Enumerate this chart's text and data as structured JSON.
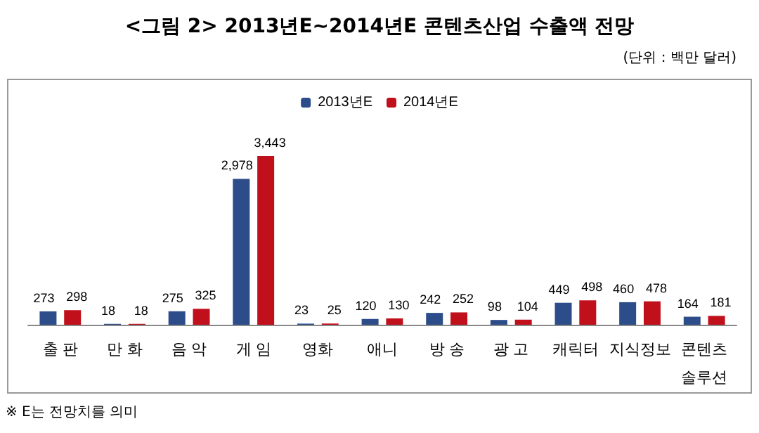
{
  "chart_data": {
    "type": "bar",
    "title": "<그림 2> 2013년E~2014년E 콘텐츠산업 수출액 전망",
    "subtitle": "(단위 : 백만 달러)",
    "categories": [
      "출 판",
      "만 화",
      "음 악",
      "게 임",
      "영화",
      "애니",
      "방 송",
      "광 고",
      "캐릭터",
      "지식정보",
      "콘텐츠\n솔루션"
    ],
    "series": [
      {
        "name": "2013년E",
        "color": "#2c4d8a",
        "values": [
          273,
          18,
          275,
          2978,
          23,
          120,
          242,
          98,
          449,
          460,
          164
        ],
        "value_labels": [
          "273",
          "18",
          "275",
          "2,978",
          "23",
          "120",
          "242",
          "98",
          "449",
          "460",
          "164"
        ]
      },
      {
        "name": "2014년E",
        "color": "#c0101c",
        "values": [
          298,
          18,
          325,
          3443,
          25,
          130,
          252,
          104,
          498,
          478,
          181
        ],
        "value_labels": [
          "298",
          "18",
          "325",
          "3,443",
          "25",
          "130",
          "252",
          "104",
          "498",
          "478",
          "181"
        ]
      }
    ],
    "legend": "top",
    "grid": false,
    "annotations": [
      "※ E는 전망치를 의미"
    ]
  }
}
